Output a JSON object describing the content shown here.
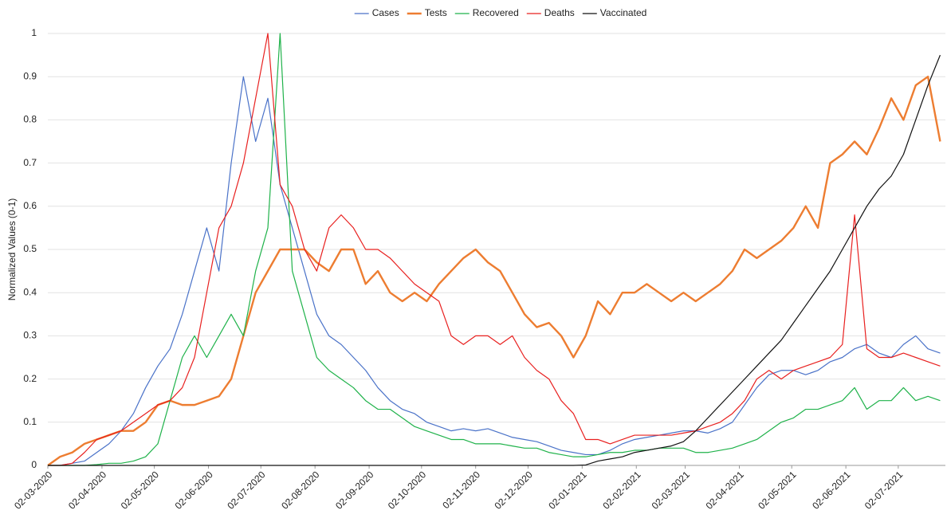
{
  "chart_data": {
    "type": "line",
    "y_label": "Normalized Values (0-1)",
    "legend": "top",
    "grid": true,
    "x": [
      "2020-03-02",
      "2020-03-09",
      "2020-03-16",
      "2020-03-23",
      "2020-03-30",
      "2020-04-06",
      "2020-04-13",
      "2020-04-20",
      "2020-04-27",
      "2020-05-04",
      "2020-05-11",
      "2020-05-18",
      "2020-05-25",
      "2020-06-01",
      "2020-06-08",
      "2020-06-15",
      "2020-06-22",
      "2020-06-29",
      "2020-07-06",
      "2020-07-13",
      "2020-07-20",
      "2020-07-27",
      "2020-08-03",
      "2020-08-10",
      "2020-08-17",
      "2020-08-24",
      "2020-08-31",
      "2020-09-07",
      "2020-09-14",
      "2020-09-21",
      "2020-09-28",
      "2020-10-05",
      "2020-10-12",
      "2020-10-19",
      "2020-10-26",
      "2020-11-02",
      "2020-11-09",
      "2020-11-16",
      "2020-11-23",
      "2020-11-30",
      "2020-12-07",
      "2020-12-14",
      "2020-12-21",
      "2020-12-28",
      "2021-01-04",
      "2021-01-11",
      "2021-01-18",
      "2021-01-25",
      "2021-02-01",
      "2021-02-08",
      "2021-02-15",
      "2021-02-22",
      "2021-03-01",
      "2021-03-08",
      "2021-03-15",
      "2021-03-22",
      "2021-03-29",
      "2021-04-05",
      "2021-04-12",
      "2021-04-19",
      "2021-04-26",
      "2021-05-03",
      "2021-05-10",
      "2021-05-17",
      "2021-05-24",
      "2021-05-31",
      "2021-06-07",
      "2021-06-14",
      "2021-06-21",
      "2021-06-28",
      "2021-07-05",
      "2021-07-12",
      "2021-07-19",
      "2021-07-26"
    ],
    "xlim": [
      "2020-03-02",
      "2021-07-29"
    ],
    "xticks": [
      {
        "value": "2020-03-02",
        "label": "02-03-2020"
      },
      {
        "value": "2020-04-02",
        "label": "02-04-2020"
      },
      {
        "value": "2020-05-02",
        "label": "02-05-2020"
      },
      {
        "value": "2020-06-02",
        "label": "02-06-2020"
      },
      {
        "value": "2020-07-02",
        "label": "02-07-2020"
      },
      {
        "value": "2020-08-02",
        "label": "02-08-2020"
      },
      {
        "value": "2020-09-02",
        "label": "02-09-2020"
      },
      {
        "value": "2020-10-02",
        "label": "02-10-2020"
      },
      {
        "value": "2020-11-02",
        "label": "02-11-2020"
      },
      {
        "value": "2020-12-02",
        "label": "02-12-2020"
      },
      {
        "value": "2021-01-02",
        "label": "02-01-2021"
      },
      {
        "value": "2021-02-02",
        "label": "02-02-2021"
      },
      {
        "value": "2021-03-02",
        "label": "02-03-2021"
      },
      {
        "value": "2021-04-02",
        "label": "02-04-2021"
      },
      {
        "value": "2021-05-02",
        "label": "02-05-2021"
      },
      {
        "value": "2021-06-02",
        "label": "02-06-2021"
      },
      {
        "value": "2021-07-02",
        "label": "02-07-2021"
      }
    ],
    "ylim": [
      0,
      1
    ],
    "yticks": [
      0,
      0.1,
      0.2,
      0.3,
      0.4,
      0.5,
      0.6,
      0.7,
      0.8,
      0.9,
      1
    ],
    "series": [
      {
        "name": "Cases",
        "color": "#4a72c8",
        "line_width": 1.2,
        "values": [
          0,
          0,
          0.005,
          0.01,
          0.03,
          0.05,
          0.08,
          0.12,
          0.18,
          0.23,
          0.27,
          0.35,
          0.45,
          0.55,
          0.45,
          0.7,
          0.9,
          0.75,
          0.85,
          0.65,
          0.55,
          0.45,
          0.35,
          0.3,
          0.28,
          0.25,
          0.22,
          0.18,
          0.15,
          0.13,
          0.12,
          0.1,
          0.09,
          0.08,
          0.085,
          0.08,
          0.085,
          0.075,
          0.065,
          0.06,
          0.055,
          0.045,
          0.035,
          0.03,
          0.025,
          0.025,
          0.035,
          0.05,
          0.06,
          0.065,
          0.07,
          0.075,
          0.08,
          0.08,
          0.075,
          0.085,
          0.1,
          0.14,
          0.18,
          0.21,
          0.22,
          0.22,
          0.21,
          0.22,
          0.24,
          0.25,
          0.27,
          0.28,
          0.26,
          0.25,
          0.28,
          0.3,
          0.27,
          0.26
        ]
      },
      {
        "name": "Tests",
        "color": "#ed7d31",
        "line_width": 2.4,
        "values": [
          0,
          0.02,
          0.03,
          0.05,
          0.06,
          0.07,
          0.08,
          0.08,
          0.1,
          0.14,
          0.15,
          0.14,
          0.14,
          0.15,
          0.16,
          0.2,
          0.3,
          0.4,
          0.45,
          0.5,
          0.5,
          0.5,
          0.47,
          0.45,
          0.5,
          0.5,
          0.42,
          0.45,
          0.4,
          0.38,
          0.4,
          0.38,
          0.42,
          0.45,
          0.48,
          0.5,
          0.47,
          0.45,
          0.4,
          0.35,
          0.32,
          0.33,
          0.3,
          0.25,
          0.3,
          0.38,
          0.35,
          0.4,
          0.4,
          0.42,
          0.4,
          0.38,
          0.4,
          0.38,
          0.4,
          0.42,
          0.45,
          0.5,
          0.48,
          0.5,
          0.52,
          0.55,
          0.6,
          0.55,
          0.7,
          0.72,
          0.75,
          0.72,
          0.78,
          0.85,
          0.8,
          0.88,
          0.9,
          0.75
        ]
      },
      {
        "name": "Recovered",
        "color": "#1fb24a",
        "line_width": 1.2,
        "values": [
          0,
          0,
          0,
          0,
          0.002,
          0.005,
          0.005,
          0.01,
          0.02,
          0.05,
          0.15,
          0.25,
          0.3,
          0.25,
          0.3,
          0.35,
          0.3,
          0.45,
          0.55,
          1.0,
          0.45,
          0.35,
          0.25,
          0.22,
          0.2,
          0.18,
          0.15,
          0.13,
          0.13,
          0.11,
          0.09,
          0.08,
          0.07,
          0.06,
          0.06,
          0.05,
          0.05,
          0.05,
          0.045,
          0.04,
          0.04,
          0.03,
          0.025,
          0.02,
          0.02,
          0.025,
          0.03,
          0.03,
          0.035,
          0.035,
          0.04,
          0.04,
          0.04,
          0.03,
          0.03,
          0.035,
          0.04,
          0.05,
          0.06,
          0.08,
          0.1,
          0.11,
          0.13,
          0.13,
          0.14,
          0.15,
          0.18,
          0.13,
          0.15,
          0.15,
          0.18,
          0.15,
          0.16,
          0.15
        ]
      },
      {
        "name": "Deaths",
        "color": "#e8201f",
        "line_width": 1.2,
        "values": [
          0,
          0,
          0.005,
          0.03,
          0.06,
          0.07,
          0.08,
          0.1,
          0.12,
          0.14,
          0.15,
          0.18,
          0.25,
          0.4,
          0.55,
          0.6,
          0.7,
          0.85,
          1.0,
          0.65,
          0.6,
          0.5,
          0.45,
          0.55,
          0.58,
          0.55,
          0.5,
          0.5,
          0.48,
          0.45,
          0.42,
          0.4,
          0.38,
          0.3,
          0.28,
          0.3,
          0.3,
          0.28,
          0.3,
          0.25,
          0.22,
          0.2,
          0.15,
          0.12,
          0.06,
          0.06,
          0.05,
          0.06,
          0.07,
          0.07,
          0.07,
          0.07,
          0.075,
          0.08,
          0.09,
          0.1,
          0.12,
          0.15,
          0.2,
          0.22,
          0.2,
          0.22,
          0.23,
          0.24,
          0.25,
          0.28,
          0.58,
          0.27,
          0.25,
          0.25,
          0.26,
          0.25,
          0.24,
          0.23
        ]
      },
      {
        "name": "Vaccinated",
        "color": "#111111",
        "line_width": 1.2,
        "values": [
          0,
          0,
          0,
          0,
          0,
          0,
          0,
          0,
          0,
          0,
          0,
          0,
          0,
          0,
          0,
          0,
          0,
          0,
          0,
          0,
          0,
          0,
          0,
          0,
          0,
          0,
          0,
          0,
          0,
          0,
          0,
          0,
          0,
          0,
          0,
          0,
          0,
          0,
          0,
          0,
          0,
          0,
          0,
          0,
          0.001,
          0.01,
          0.015,
          0.02,
          0.03,
          0.035,
          0.04,
          0.045,
          0.055,
          0.08,
          0.11,
          0.14,
          0.17,
          0.2,
          0.23,
          0.26,
          0.29,
          0.33,
          0.37,
          0.41,
          0.45,
          0.5,
          0.55,
          0.6,
          0.64,
          0.67,
          0.72,
          0.8,
          0.88,
          0.95
        ]
      }
    ]
  }
}
